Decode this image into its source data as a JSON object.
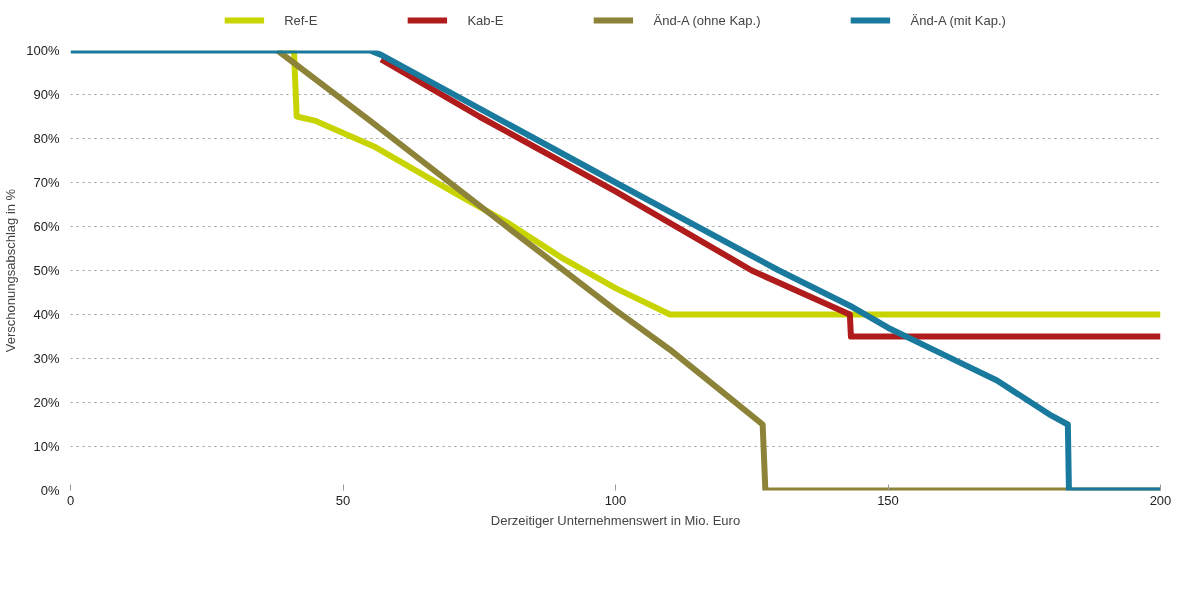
{
  "chart_data": {
    "type": "line",
    "xlabel": "Derzeitiger Unternehmenswert in Mio. Euro",
    "ylabel": "Verschonungsabschlag in %",
    "xlim": [
      0,
      200
    ],
    "ylim": [
      0,
      100
    ],
    "xticks": [
      0,
      50,
      100,
      150,
      200
    ],
    "yticks": [
      {
        "value": 0,
        "label": "0%"
      },
      {
        "value": 10,
        "label": "10%"
      },
      {
        "value": 20,
        "label": "20%"
      },
      {
        "value": 30,
        "label": "30%"
      },
      {
        "value": 40,
        "label": "40%"
      },
      {
        "value": 50,
        "label": "50%"
      },
      {
        "value": 60,
        "label": "60%"
      },
      {
        "value": 70,
        "label": "70%"
      },
      {
        "value": 80,
        "label": "80%"
      },
      {
        "value": 90,
        "label": "90%"
      },
      {
        "value": 100,
        "label": "100%"
      }
    ],
    "grid": "y",
    "legend": "top",
    "line_style": "solid",
    "marker": "none",
    "series": [
      {
        "name": "Ref-E",
        "color": "#c8d400",
        "x": [
          38,
          41,
          41.5,
          45,
          56,
          70,
          80,
          90,
          100,
          110,
          200
        ],
        "values": [
          100,
          100,
          85,
          84,
          78,
          68,
          61,
          53,
          46,
          40,
          40
        ]
      },
      {
        "name": "Kab-E",
        "color": "#b01c1c",
        "x": [
          57,
          75,
          100,
          125,
          143,
          143.2,
          200
        ],
        "values": [
          98,
          85,
          68,
          50,
          40,
          35,
          35
        ]
      },
      {
        "name": "Änd-A (ohne Kap.)",
        "color": "#8c8238",
        "x": [
          38,
          55,
          80,
          100,
          110,
          120,
          127,
          127.5,
          200
        ],
        "values": [
          100,
          84,
          60,
          41,
          32,
          22,
          15,
          0,
          0
        ]
      },
      {
        "name": "Änd-A (mit Kap.)",
        "color": "#1a7a9e",
        "x": [
          0,
          55,
          57,
          100,
          130,
          143,
          150,
          160,
          170,
          180,
          183,
          183.2,
          200
        ],
        "values": [
          100,
          100,
          99,
          70,
          50,
          42,
          37,
          31,
          25,
          17,
          15,
          0,
          0
        ]
      }
    ]
  }
}
